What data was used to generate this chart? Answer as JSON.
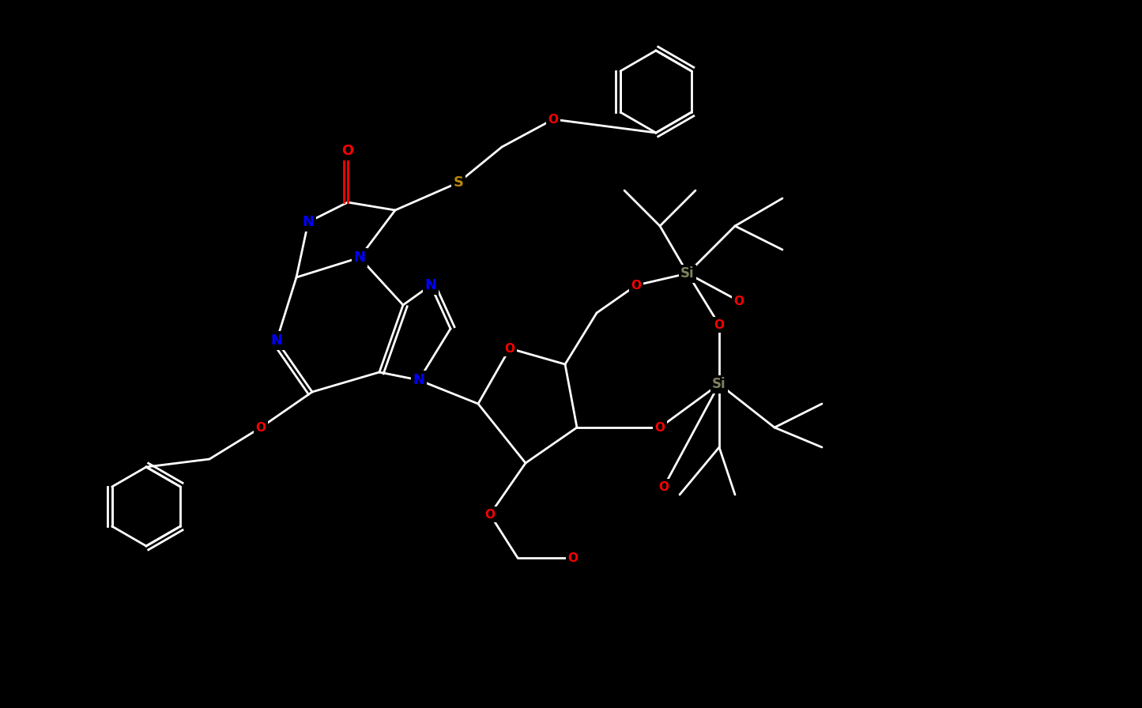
{
  "background_color": "#000000",
  "atom_colors": {
    "N": "#0000ff",
    "O": "#ff0000",
    "S": "#b8860b",
    "Si": "#808060"
  },
  "bond_color": "#ffffff",
  "fig_width": 14.45,
  "fig_height": 8.96,
  "dpi": 100
}
